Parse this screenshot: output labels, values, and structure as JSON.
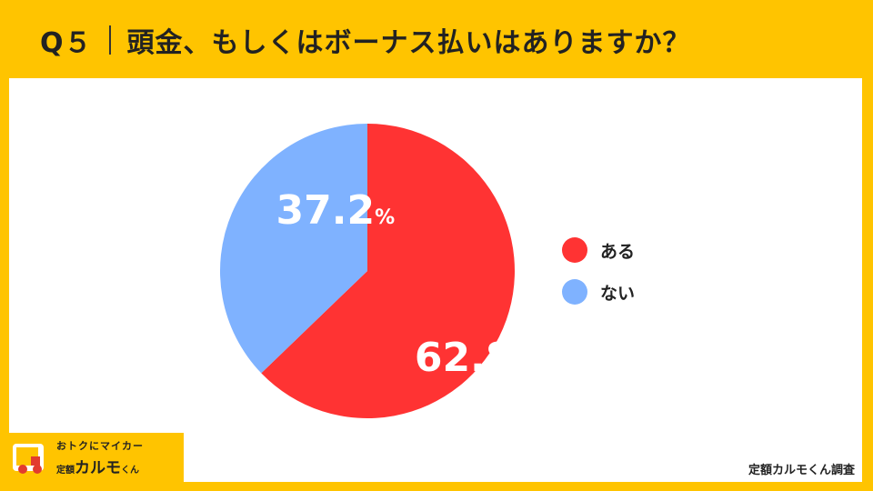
{
  "header": {
    "question_no": "Q５",
    "question": "頭金、もしくはボーナス払いはありますか？"
  },
  "chart_data": {
    "type": "pie",
    "title": "頭金、もしくはボーナス払いはありますか？",
    "slices": [
      {
        "label": "ある",
        "value": 62.8,
        "color": "#ff3333",
        "value_text": "62.8",
        "unit": "%"
      },
      {
        "label": "ない",
        "value": 37.2,
        "color": "#7fb2ff",
        "value_text": "37.2",
        "unit": "%"
      }
    ],
    "legend_position": "right"
  },
  "logo": {
    "line1": "おトクにマイカー",
    "line2_a": "定額",
    "line2_b": "カルモ",
    "line2_c": "くん"
  },
  "credit": "定額カルモくん調査"
}
